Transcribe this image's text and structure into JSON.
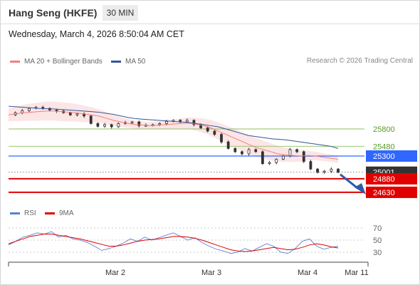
{
  "header": {
    "title": "Hang Seng (HKFE)",
    "timeframe": "30 MIN",
    "datetime": "Wednesday, March 4, 2026 8:50:04 AM CET"
  },
  "legend": {
    "ma20_label": "MA 20 + Bollinger Bands",
    "ma20_color": "#f08080",
    "ma50_label": "MA 50",
    "ma50_color": "#34559a"
  },
  "research": "Research © 2026 Trading Central",
  "rsi_legend": {
    "rsi_label": "RSI",
    "rsi_color": "#5b7fd4",
    "ma_label": "9MA",
    "ma_color": "#e00000"
  },
  "chart_data": {
    "type": "candlestick",
    "ylim": [
      24600,
      26400
    ],
    "x_ticks": [
      "Mar 2",
      "Mar 3",
      "Mar 4",
      "Mar 11"
    ],
    "levels": [
      {
        "value": 25800,
        "label": "25800",
        "color": "#8fbf5f",
        "style": "line",
        "kind": "green"
      },
      {
        "value": 25480,
        "label": "25480",
        "color": "#8fbf5f",
        "style": "line",
        "kind": "green"
      },
      {
        "value": 25300,
        "label": "25300",
        "color": "#2f67ff",
        "style": "box",
        "kind": "blue"
      },
      {
        "value": 25001,
        "label": "25001",
        "color": "#333333",
        "style": "box",
        "kind": "price"
      },
      {
        "value": 24880,
        "label": "24880",
        "color": "#e00000",
        "style": "box",
        "kind": "red"
      },
      {
        "value": 24630,
        "label": "24630",
        "color": "#e00000",
        "style": "box",
        "kind": "red"
      }
    ],
    "close_path": [
      26060,
      26100,
      26140,
      26180,
      26200,
      26180,
      26150,
      26130,
      26100,
      26060,
      26080,
      26040,
      25900,
      25850,
      25880,
      25840,
      25900,
      25920,
      25930,
      25860,
      25870,
      25880,
      25900,
      25940,
      25960,
      25930,
      25960,
      25880,
      25820,
      25760,
      25700,
      25560,
      25440,
      25380,
      25340,
      25420,
      25380,
      25160,
      25180,
      25240,
      25300,
      25420,
      25380,
      25200,
      25060,
      25000,
      25020,
      25060,
      25001
    ],
    "ma50_path": [
      26220,
      26210,
      26200,
      26190,
      26180,
      26175,
      26170,
      26160,
      26150,
      26140,
      26130,
      26120,
      26110,
      26090,
      26070,
      26040,
      26010,
      25990,
      25980,
      25970,
      25960,
      25950,
      25940,
      25930,
      25920,
      25900,
      25880,
      25860,
      25840,
      25800,
      25760,
      25720,
      25680,
      25660,
      25640,
      25620,
      25610,
      25600,
      25580,
      25560,
      25540,
      25520,
      25500,
      25480,
      25440
    ],
    "ma20_path": [
      26060,
      26080,
      26100,
      26110,
      26120,
      26130,
      26130,
      26120,
      26110,
      26100,
      26080,
      26060,
      26040,
      26000,
      25960,
      25930,
      25900,
      25880,
      25870,
      25860,
      25870,
      25880,
      25890,
      25900,
      25910,
      25890,
      25860,
      25820,
      25760,
      25700,
      25640,
      25580,
      25520,
      25460,
      25420,
      25380,
      25340,
      25320,
      25310,
      25300,
      25310,
      25300,
      25280,
      25260,
      25240
    ],
    "rsi": {
      "ylim": [
        0,
        100
      ],
      "ticks": [
        70,
        50,
        30
      ],
      "rsi_path": [
        42,
        48,
        55,
        58,
        62,
        60,
        64,
        55,
        58,
        52,
        50,
        46,
        40,
        33,
        36,
        40,
        45,
        52,
        48,
        55,
        50,
        54,
        58,
        62,
        56,
        50,
        54,
        46,
        40,
        35,
        32,
        28,
        30,
        36,
        32,
        38,
        44,
        40,
        30,
        28,
        36,
        48,
        52,
        40,
        35,
        38,
        40
      ],
      "ma_path": [
        44,
        48,
        52,
        56,
        58,
        60,
        60,
        58,
        56,
        54,
        52,
        49,
        46,
        43,
        40,
        40,
        42,
        45,
        48,
        50,
        51,
        52,
        54,
        56,
        56,
        55,
        53,
        50,
        46,
        42,
        38,
        34,
        32,
        31,
        32,
        34,
        36,
        38,
        36,
        34,
        35,
        38,
        42,
        44,
        42,
        39,
        37
      ]
    }
  }
}
